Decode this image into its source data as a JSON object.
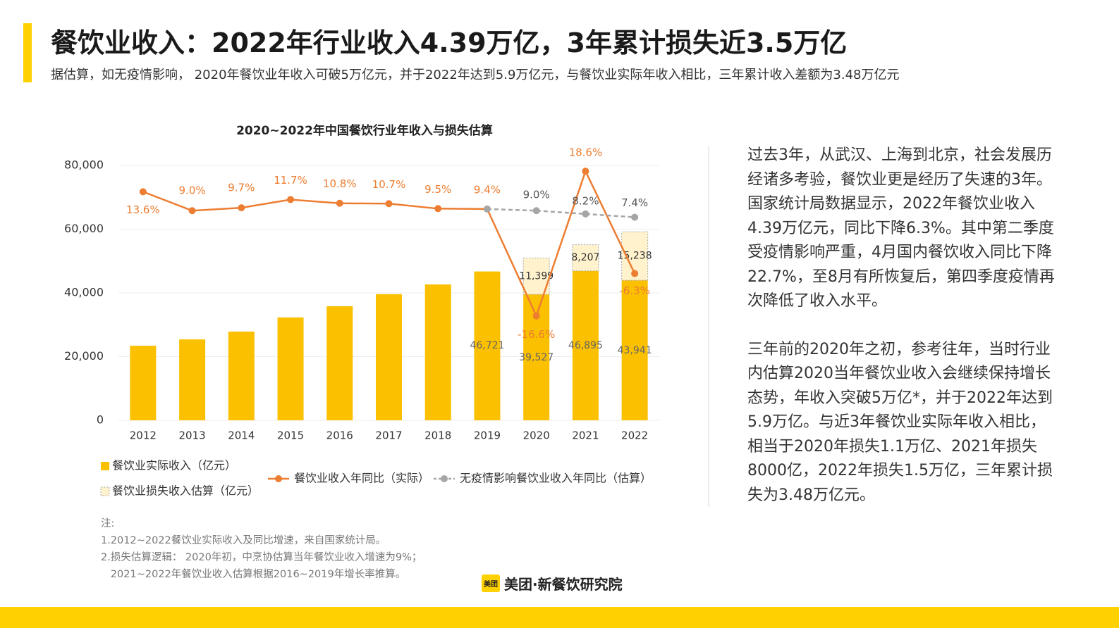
{
  "header": {
    "title": "餐饮业收入：2022年行业收入4.39万亿，3年累计损失近3.5万亿",
    "subtitle": "据估算，如无疫情影响， 2020年餐饮业年收入可破5万亿元，并于2022年达到5.9万亿元，与餐饮业实际年收入相比，三年累计收入差额为3.48万亿元"
  },
  "chart_data": {
    "type": "bar",
    "title": "2020~2022年中国餐饮行业年收入与损失估算",
    "categories": [
      "2012",
      "2013",
      "2014",
      "2015",
      "2016",
      "2017",
      "2018",
      "2019",
      "2020",
      "2021",
      "2022"
    ],
    "series": [
      {
        "name": "餐饮业实际收入（亿元）",
        "type": "bar",
        "color": "#fbc000",
        "values": [
          23400,
          25400,
          27850,
          32300,
          35800,
          39600,
          42650,
          46721,
          39527,
          46895,
          43941
        ],
        "value_labels": [
          null,
          null,
          null,
          null,
          null,
          null,
          null,
          "46,721",
          "39,527",
          "46,895",
          "43,941"
        ]
      },
      {
        "name": "餐饮业损失收入估算（亿元）",
        "type": "bar",
        "color": "#fff2cc",
        "border_color": "#a6a6a6",
        "values": [
          null,
          null,
          null,
          null,
          null,
          null,
          null,
          null,
          11399,
          8207,
          15238
        ],
        "value_labels": [
          null,
          null,
          null,
          null,
          null,
          null,
          null,
          null,
          "11,399",
          "8,207",
          "15,238"
        ]
      },
      {
        "name": "餐饮业收入年同比（实际）",
        "type": "line",
        "axis": "y2",
        "color": "#ed7d31",
        "values": [
          13.6,
          9.0,
          9.7,
          11.7,
          10.8,
          10.7,
          9.5,
          9.4,
          -16.6,
          18.6,
          -6.3
        ],
        "value_labels": [
          "13.6%",
          "9.0%",
          "9.7%",
          "11.7%",
          "10.8%",
          "10.7%",
          "9.5%",
          "9.4%",
          "-16.6%",
          "18.6%",
          "-6.3%"
        ]
      },
      {
        "name": "无疫情影响餐饮业收入年同比（估算）",
        "type": "line",
        "axis": "y2",
        "color": "#a6a6a6",
        "dashed": true,
        "values": [
          null,
          null,
          null,
          null,
          null,
          null,
          null,
          9.4,
          9.0,
          8.2,
          7.4
        ],
        "value_labels": [
          null,
          null,
          null,
          null,
          null,
          null,
          null,
          null,
          "9.0%",
          "8.2%",
          "7.4%"
        ]
      }
    ],
    "ylim": [
      0,
      80000
    ],
    "yticks": [
      0,
      {
        "value": 20000,
        "label": "20,000"
      },
      {
        "value": 40000,
        "label": "40,000"
      },
      {
        "value": 60000,
        "label": "60,000"
      },
      {
        "value": 80000,
        "label": "80,000"
      }
    ],
    "y2lim": [
      -42,
      20
    ],
    "grid": true
  },
  "side_text": {
    "paragraphs": [
      "过去3年，从武汉、上海到北京，社会发展历经诸多考验，餐饮业更是经历了失速的3年。国家统计局数据显示，2022年餐饮业收入4.39万亿元，同比下降6.3%。其中第二季度受疫情影响严重，4月国内餐饮收入同比下降22.7%，至8月有所恢复后，第四季度疫情再次降低了收入水平。",
      "三年前的2020年之初，参考往年，当时行业内估算2020当年餐饮业收入会继续保持增长态势，年收入突破5万亿*，并于2022年达到5.9万亿。与近3年餐饮业实际年收入相比，相当于2020年损失1.1万亿、2021年损失8000亿，2022年损失1.5万亿，三年累计损失为3.48万亿元。"
    ]
  },
  "notes": [
    "注:",
    "1.2012~2022餐饮业实际收入及同比增速，来自国家统计局。",
    "2.损失估算逻辑： 2020年初，中烹协估算当年餐饮业收入增速为9%；",
    "   2021~2022年餐饮业收入估算根据2016~2019年增长率推算。"
  ],
  "logo": {
    "icon": "美团",
    "text": "美团·新餐饮研究院"
  }
}
